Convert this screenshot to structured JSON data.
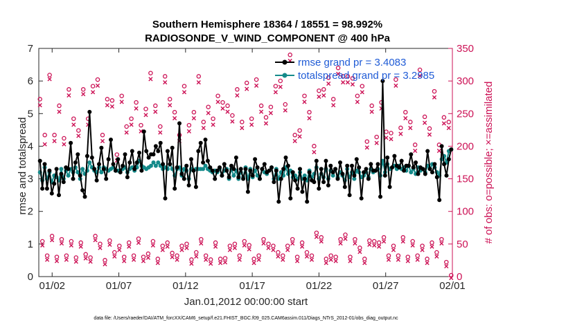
{
  "chart_data": {
    "type": "line",
    "title": "Southern Hemisphere 18364 / 18551 = 98.992%",
    "subtitle": "RADIOSONDE_V_WIND_COMPONENT @ 400 hPa",
    "xlabel": "Jan.01,2012 00:00:00 start",
    "ylabel": "rmse and totalspread",
    "ylabel_right": "# of obs: o=possible; ×=assimilated",
    "xlim": [
      0,
      31
    ],
    "ylim": [
      0,
      7
    ],
    "ylim_right": [
      0,
      350
    ],
    "x_ticks": [
      1,
      6,
      11,
      16,
      21,
      26,
      31
    ],
    "x_tick_labels": [
      "01/02",
      "01/07",
      "01/12",
      "01/17",
      "01/22",
      "01/27",
      "02/01"
    ],
    "y_ticks": [
      0,
      1,
      2,
      3,
      4,
      5,
      6,
      7
    ],
    "y_ticks_right": [
      0,
      50,
      100,
      150,
      200,
      250,
      300,
      350
    ],
    "series": [
      {
        "name": "rmse grand pr = 3.4083",
        "color": "#000000",
        "marker": "filled-circle",
        "axis": "left",
        "values": [
          3.55,
          2.7,
          3.45,
          2.7,
          3.25,
          2.55,
          2.85,
          3.3,
          2.5,
          3.15,
          2.9,
          3.35,
          3.3,
          4.1,
          3.0,
          3.5,
          3.75,
          3.1,
          2.65,
          2.45,
          3.7,
          5.05,
          3.65,
          3.3,
          2.95,
          3.45,
          3.95,
          3.3,
          3.0,
          3.6,
          4.2,
          3.45,
          3.25,
          3.6,
          3.2,
          3.4,
          3.75,
          3.05,
          3.5,
          3.85,
          3.3,
          3.5,
          3.8,
          3.25,
          4.45,
          3.85,
          3.65,
          3.75,
          3.75,
          4.0,
          3.85,
          4.1,
          3.45,
          2.4,
          3.85,
          3.45,
          3.95,
          2.7,
          3.35,
          4.7,
          3.15,
          3.0,
          3.4,
          2.8,
          3.6,
          3.25,
          2.75,
          3.85,
          4.1,
          3.5,
          4.2,
          3.55,
          3.35,
          3.25,
          3.0,
          3.25,
          3.35,
          3.1,
          3.45,
          3.25,
          3.05,
          3.4,
          3.3,
          3.65,
          3.05,
          3.3,
          3.0,
          3.3,
          2.6,
          3.25,
          3.1,
          3.6,
          3.35,
          3.0,
          3.3,
          3.45,
          3.2,
          3.25,
          3.35,
          2.9,
          3.25,
          2.3,
          3.0,
          3.3,
          3.65,
          3.4,
          2.4,
          3.2,
          2.95,
          2.7,
          3.3,
          2.6,
          3.0,
          2.3,
          3.2,
          2.95,
          2.9,
          3.55,
          2.7,
          3.3,
          2.9,
          3.55,
          2.8,
          3.4,
          3.2,
          3.3,
          3.0,
          3.5,
          3.15,
          2.75,
          3.4,
          2.5,
          3.4,
          3.1,
          3.6,
          3.35,
          2.4,
          3.2,
          3.3,
          3.0,
          3.45,
          3.25,
          3.25,
          3.45,
          2.45,
          6.0,
          3.1,
          3.65,
          2.75,
          3.35,
          3.7,
          3.4,
          3.35,
          3.55,
          3.25,
          3.4,
          3.4,
          3.75,
          3.35,
          3.5,
          3.15,
          3.35,
          3.3,
          3.15,
          3.85,
          3.3,
          3.2,
          3.45,
          3.05,
          2.35,
          4.0,
          3.45,
          3.1,
          3.6,
          3.9
        ]
      },
      {
        "name": "totalspread grand pr = 3.2985",
        "color": "#148a8a",
        "marker": "filled-circle",
        "axis": "left",
        "values": [
          3.2,
          2.95,
          3.35,
          3.0,
          3.2,
          2.9,
          3.1,
          3.05,
          2.95,
          3.3,
          3.0,
          3.25,
          3.1,
          3.3,
          3.2,
          3.35,
          3.2,
          3.0,
          3.3,
          3.15,
          3.25,
          3.5,
          3.35,
          3.25,
          3.2,
          3.35,
          3.2,
          3.35,
          3.3,
          3.25,
          3.3,
          3.35,
          3.25,
          3.25,
          3.25,
          3.3,
          3.35,
          3.2,
          3.3,
          3.35,
          3.25,
          3.35,
          3.55,
          3.4,
          3.35,
          3.3,
          3.35,
          3.4,
          3.5,
          3.4,
          3.5,
          3.4,
          3.3,
          3.35,
          3.3,
          3.45,
          3.3,
          3.1,
          3.3,
          3.35,
          3.1,
          3.3,
          3.25,
          3.0,
          3.3,
          3.25,
          3.3,
          3.3,
          3.3,
          3.3,
          3.4,
          3.3,
          3.25,
          3.2,
          3.25,
          3.2,
          3.3,
          3.1,
          3.25,
          3.3,
          3.0,
          3.3,
          3.1,
          3.25,
          3.0,
          3.2,
          3.05,
          3.35,
          3.0,
          3.3,
          3.05,
          3.25,
          3.1,
          3.0,
          3.3,
          3.2,
          3.15,
          3.25,
          3.35,
          3.0,
          3.3,
          3.0,
          3.2,
          3.1,
          3.35,
          3.15,
          3.25,
          3.05,
          3.1,
          3.0,
          3.2,
          3.0,
          3.1,
          2.95,
          3.25,
          3.05,
          3.15,
          3.35,
          3.0,
          3.15,
          3.05,
          3.3,
          3.0,
          3.25,
          3.1,
          3.3,
          3.05,
          3.2,
          3.1,
          2.95,
          3.3,
          3.05,
          3.2,
          3.0,
          3.25,
          3.2,
          3.05,
          3.1,
          3.2,
          3.05,
          3.3,
          3.2,
          3.25,
          3.3,
          3.1,
          3.55,
          3.2,
          3.45,
          3.3,
          3.35,
          3.4,
          3.3,
          3.4,
          3.3,
          3.35,
          3.25,
          3.4,
          3.2,
          3.3,
          3.15,
          3.35,
          3.25,
          3.3,
          3.2,
          3.4,
          3.3,
          3.45,
          3.35,
          3.2,
          3.1,
          3.6,
          3.7,
          3.5,
          3.85,
          3.9
        ]
      },
      {
        "name": "obs possible",
        "color": "#cc1155",
        "marker": "open-circle",
        "axis": "right",
        "values": [
          270,
          52,
          215,
          30,
          307,
          60,
          215,
          28,
          260,
          55,
          210,
          30,
          285,
          52,
          240,
          27,
          222,
          50,
          285,
          32,
          240,
          27,
          290,
          60,
          300,
          48,
          215,
          23,
          270,
          53,
          268,
          35,
          185,
          45,
          275,
          28,
          228,
          50,
          240,
          30,
          265,
          56,
          230,
          28,
          255,
          33,
          310,
          52,
          260,
          25,
          228,
          45,
          305,
          50,
          270,
          34,
          250,
          30,
          215,
          45,
          290,
          48,
          230,
          24,
          250,
          35,
          305,
          55,
          235,
          30,
          258,
          24,
          240,
          50,
          275,
          25,
          265,
          26,
          260,
          45,
          245,
          48,
          285,
          30,
          235,
          52,
          295,
          46,
          240,
          25,
          300,
          30,
          260,
          55,
          242,
          48,
          258,
          45,
          290,
          35,
          298,
          30,
          262,
          45,
          338,
          55,
          215,
          28,
          222,
          50,
          275,
          35,
          250,
          30,
          198,
          65,
          283,
          58,
          285,
          25,
          303,
          30,
          270,
          28,
          318,
          55,
          305,
          62,
          305,
          28,
          302,
          55,
          275,
          42,
          290,
          25,
          205,
          53,
          260,
          52,
          212,
          50,
          265,
          58,
          220,
          30,
          218,
          45,
          300,
          30,
          226,
          58,
          250,
          28,
          235,
          52,
          200,
          30,
          315,
          45,
          243,
          25,
          225,
          50,
          282,
          35,
          200,
          55,
          242,
          20,
          235,
          0
        ]
      },
      {
        "name": "obs assimilated",
        "color": "#cc1155",
        "marker": "x",
        "axis": "right",
        "values": [
          265,
          50,
          205,
          28,
          305,
          58,
          210,
          26,
          255,
          53,
          205,
          28,
          280,
          50,
          235,
          25,
          218,
          48,
          282,
          30,
          235,
          25,
          285,
          58,
          295,
          46,
          210,
          21,
          265,
          51,
          263,
          33,
          180,
          43,
          270,
          26,
          223,
          48,
          235,
          28,
          260,
          54,
          225,
          26,
          250,
          31,
          305,
          50,
          255,
          23,
          223,
          43,
          300,
          48,
          265,
          32,
          245,
          28,
          210,
          43,
          285,
          46,
          225,
          22,
          245,
          33,
          300,
          53,
          230,
          28,
          253,
          22,
          235,
          48,
          270,
          23,
          260,
          24,
          255,
          43,
          240,
          46,
          280,
          28,
          230,
          50,
          290,
          44,
          235,
          23,
          295,
          28,
          255,
          53,
          237,
          46,
          253,
          43,
          285,
          33,
          293,
          28,
          257,
          43,
          333,
          53,
          210,
          26,
          217,
          48,
          270,
          33,
          245,
          28,
          193,
          63,
          278,
          56,
          280,
          23,
          298,
          28,
          265,
          26,
          313,
          53,
          300,
          60,
          300,
          26,
          297,
          53,
          270,
          40,
          285,
          23,
          200,
          51,
          255,
          50,
          207,
          48,
          260,
          56,
          215,
          28,
          213,
          43,
          295,
          28,
          221,
          56,
          245,
          26,
          230,
          50,
          195,
          28,
          310,
          43,
          238,
          23,
          220,
          48,
          277,
          33,
          195,
          53,
          237,
          18,
          230,
          0
        ]
      }
    ]
  },
  "footer": "data file: /Users/raeder/DAI/ATM_forcXX/CAM6_setup/f.e21.FHIST_BGC.f09_025.CAM6assim.011/Diags_NTrS_2012-01/obs_diag_output.nc"
}
